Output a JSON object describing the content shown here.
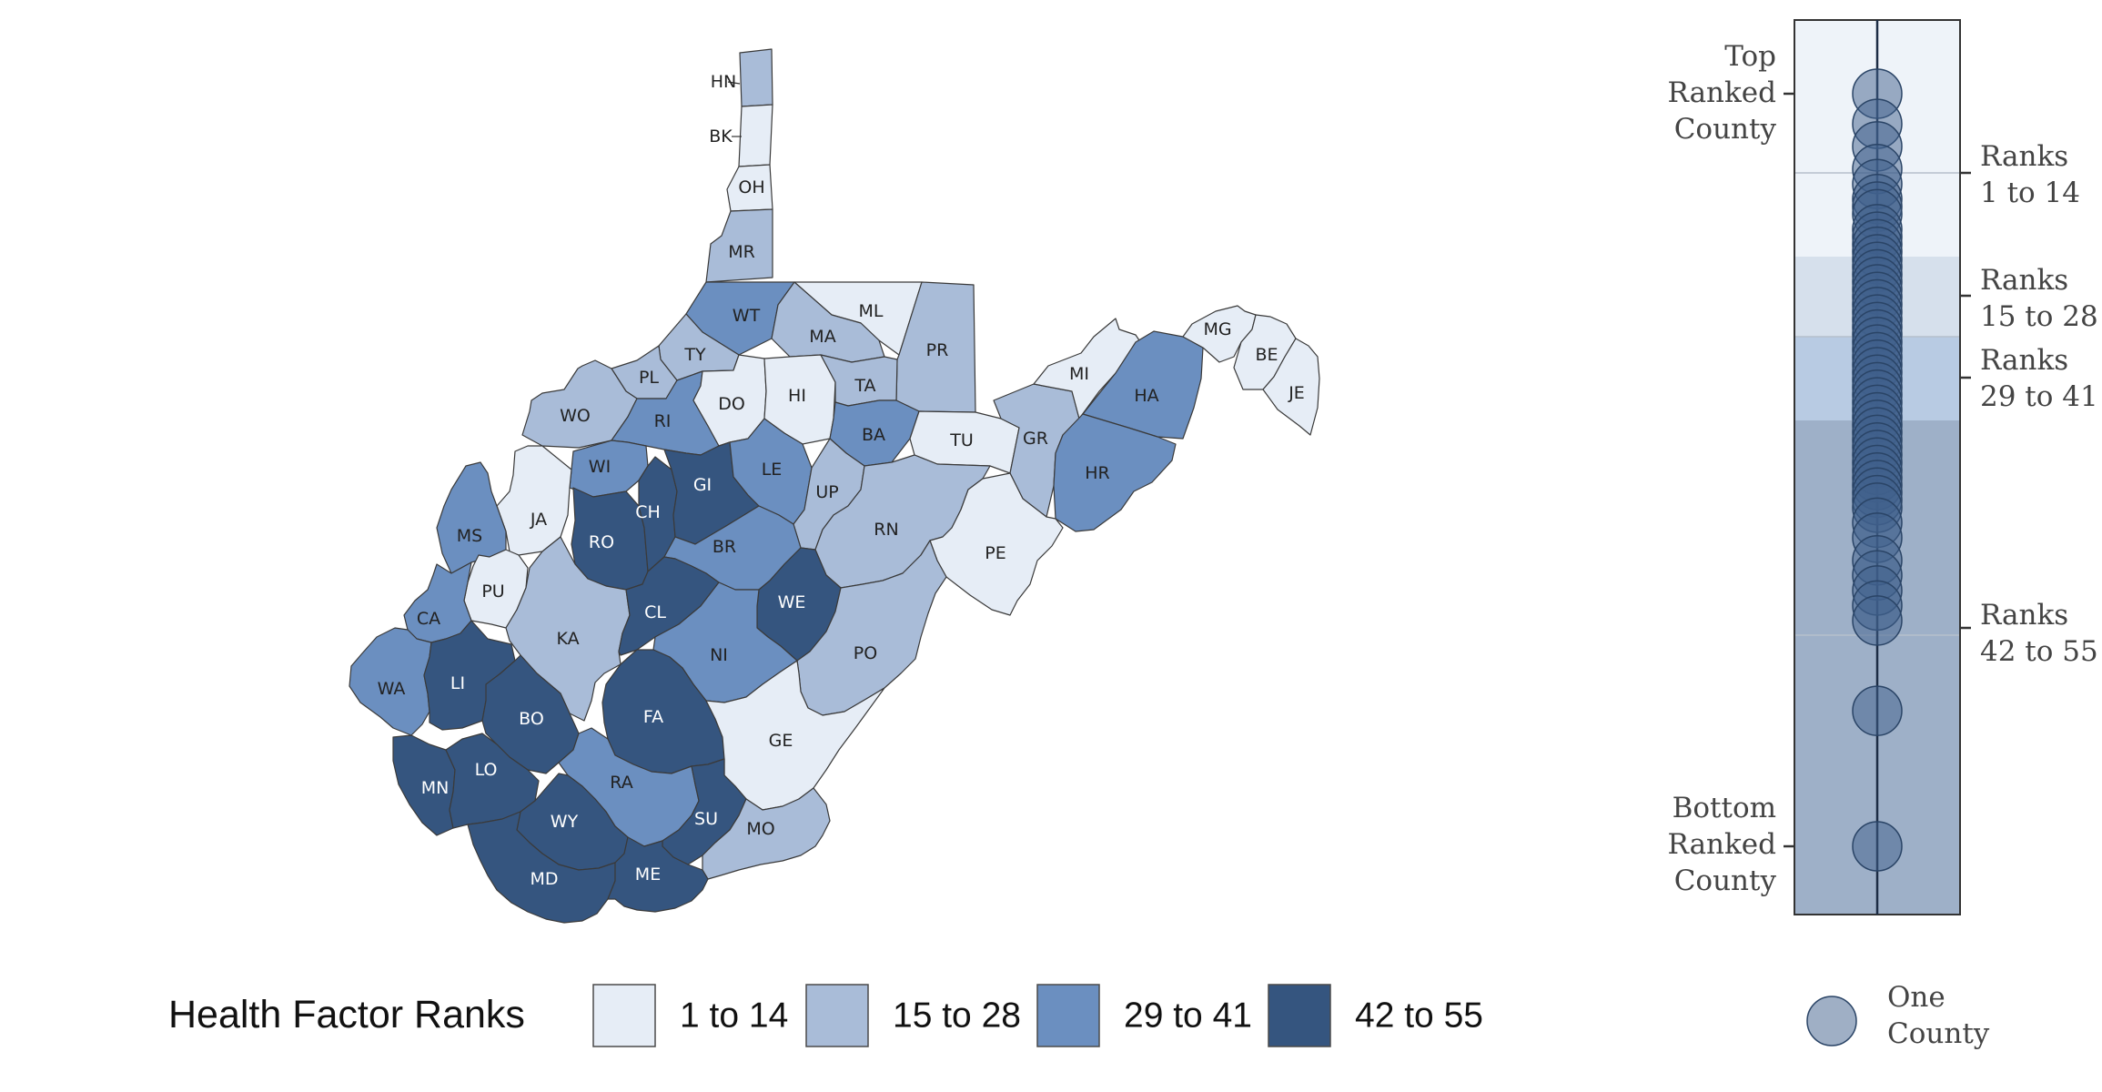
{
  "colors": {
    "bin1": "#e6edf6",
    "bin2": "#a9bcd8",
    "bin3": "#6b8fc0",
    "bin4": "#35557f",
    "dot_fill": "#3f5f8c",
    "dot_stroke": "#2a4466",
    "axis_line": "#1c2c44"
  },
  "map": {
    "counties": [
      {
        "code": "HN",
        "bin": 2
      },
      {
        "code": "BK",
        "bin": 1
      },
      {
        "code": "OH",
        "bin": 1
      },
      {
        "code": "MR",
        "bin": 2
      },
      {
        "code": "WT",
        "bin": 3
      },
      {
        "code": "ML",
        "bin": 1
      },
      {
        "code": "MA",
        "bin": 2
      },
      {
        "code": "PR",
        "bin": 2
      },
      {
        "code": "TY",
        "bin": 2
      },
      {
        "code": "PL",
        "bin": 2
      },
      {
        "code": "WO",
        "bin": 2
      },
      {
        "code": "RI",
        "bin": 3
      },
      {
        "code": "DO",
        "bin": 1
      },
      {
        "code": "HI",
        "bin": 1
      },
      {
        "code": "TA",
        "bin": 2
      },
      {
        "code": "BA",
        "bin": 3
      },
      {
        "code": "TU",
        "bin": 1
      },
      {
        "code": "GR",
        "bin": 2
      },
      {
        "code": "MI",
        "bin": 1
      },
      {
        "code": "HA",
        "bin": 3
      },
      {
        "code": "MG",
        "bin": 1
      },
      {
        "code": "BE",
        "bin": 1
      },
      {
        "code": "JE",
        "bin": 1
      },
      {
        "code": "HR",
        "bin": 3
      },
      {
        "code": "WI",
        "bin": 3
      },
      {
        "code": "JA",
        "bin": 1
      },
      {
        "code": "MS",
        "bin": 3
      },
      {
        "code": "RO",
        "bin": 4
      },
      {
        "code": "CH",
        "bin": 4
      },
      {
        "code": "GI",
        "bin": 4
      },
      {
        "code": "LE",
        "bin": 3
      },
      {
        "code": "UP",
        "bin": 2
      },
      {
        "code": "RN",
        "bin": 2
      },
      {
        "code": "PE",
        "bin": 1
      },
      {
        "code": "BR",
        "bin": 3
      },
      {
        "code": "PU",
        "bin": 1
      },
      {
        "code": "CA",
        "bin": 3
      },
      {
        "code": "KA",
        "bin": 2
      },
      {
        "code": "CL",
        "bin": 4
      },
      {
        "code": "WE",
        "bin": 4
      },
      {
        "code": "NI",
        "bin": 3
      },
      {
        "code": "PO",
        "bin": 2
      },
      {
        "code": "WA",
        "bin": 3
      },
      {
        "code": "LI",
        "bin": 4
      },
      {
        "code": "BO",
        "bin": 4
      },
      {
        "code": "FA",
        "bin": 4
      },
      {
        "code": "GE",
        "bin": 1
      },
      {
        "code": "MN",
        "bin": 4
      },
      {
        "code": "LO",
        "bin": 4
      },
      {
        "code": "RA",
        "bin": 3
      },
      {
        "code": "SU",
        "bin": 4
      },
      {
        "code": "WY",
        "bin": 4
      },
      {
        "code": "MO",
        "bin": 2
      },
      {
        "code": "MD",
        "bin": 4
      },
      {
        "code": "ME",
        "bin": 4
      }
    ]
  },
  "legend": {
    "title": "Health Factor Ranks",
    "items": [
      {
        "label": "1 to 14",
        "bin": 1
      },
      {
        "label": "15 to 28",
        "bin": 2
      },
      {
        "label": "29 to 41",
        "bin": 3
      },
      {
        "label": "42 to 55",
        "bin": 4
      }
    ]
  },
  "rank_strip": {
    "top_label": [
      "Top",
      "Ranked",
      "County"
    ],
    "bottom_label": [
      "Bottom",
      "Ranked",
      "County"
    ],
    "band_labels": [
      [
        "Ranks",
        "1 to 14"
      ],
      [
        "Ranks",
        "15 to 28"
      ],
      [
        "Ranks",
        "29 to 41"
      ],
      [
        "Ranks",
        "42 to 55"
      ]
    ],
    "dots_relative_position": [
      0.0,
      0.04,
      0.07,
      0.1,
      0.12,
      0.14,
      0.15,
      0.16,
      0.18,
      0.19,
      0.2,
      0.21,
      0.22,
      0.23,
      0.24,
      0.25,
      0.26,
      0.27,
      0.28,
      0.29,
      0.3,
      0.31,
      0.32,
      0.33,
      0.34,
      0.35,
      0.36,
      0.37,
      0.38,
      0.39,
      0.4,
      0.41,
      0.42,
      0.43,
      0.44,
      0.45,
      0.46,
      0.47,
      0.48,
      0.49,
      0.5,
      0.51,
      0.52,
      0.53,
      0.54,
      0.55,
      0.57,
      0.59,
      0.62,
      0.64,
      0.66,
      0.68,
      0.7,
      0.82,
      1.0
    ],
    "key_label": [
      "One",
      "County"
    ]
  }
}
